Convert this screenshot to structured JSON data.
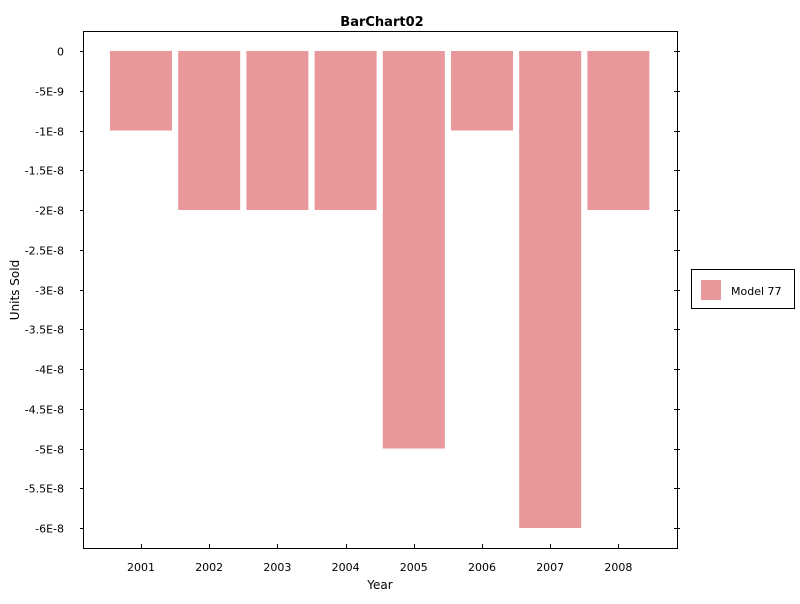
{
  "chart_data": {
    "type": "bar",
    "title": "BarChart02",
    "xlabel": "Year",
    "ylabel": "Units Sold",
    "categories": [
      "2001",
      "2002",
      "2003",
      "2004",
      "2005",
      "2006",
      "2007",
      "2008"
    ],
    "series": [
      {
        "name": "Model 77",
        "values": [
          -1e-08,
          -2e-08,
          -2e-08,
          -2e-08,
          -5e-08,
          -1e-08,
          -6e-08,
          -2e-08
        ],
        "color": "#e8989a"
      }
    ],
    "y_ticks": [
      {
        "value": 0,
        "label": "0"
      },
      {
        "value": -5e-09,
        "label": "-5E-9"
      },
      {
        "value": -1e-08,
        "label": "-1E-8"
      },
      {
        "value": -1.5e-08,
        "label": "-1.5E-8"
      },
      {
        "value": -2e-08,
        "label": "-2E-8"
      },
      {
        "value": -2.5e-08,
        "label": "-2.5E-8"
      },
      {
        "value": -3e-08,
        "label": "-3E-8"
      },
      {
        "value": -3.5e-08,
        "label": "-3.5E-8"
      },
      {
        "value": -4e-08,
        "label": "-4E-8"
      },
      {
        "value": -4.5e-08,
        "label": "-4.5E-8"
      },
      {
        "value": -5e-08,
        "label": "-5E-8"
      },
      {
        "value": -5.5e-08,
        "label": "-5.5E-8"
      },
      {
        "value": -6e-08,
        "label": "-6E-8"
      }
    ],
    "grid": false,
    "legend_position": "right"
  }
}
